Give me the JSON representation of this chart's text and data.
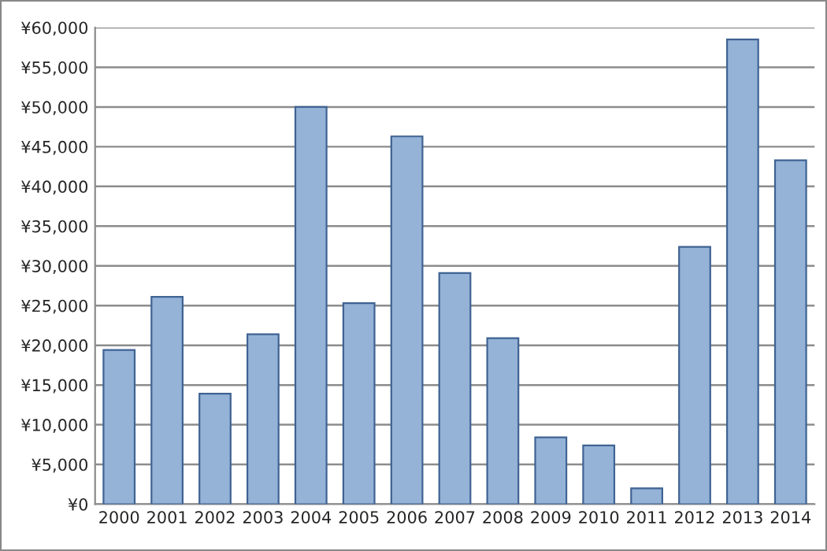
{
  "chart_data": {
    "type": "bar",
    "categories": [
      "2000",
      "2001",
      "2002",
      "2003",
      "2004",
      "2005",
      "2006",
      "2007",
      "2008",
      "2009",
      "2010",
      "2011",
      "2012",
      "2013",
      "2014"
    ],
    "values": [
      19400,
      26100,
      13900,
      21400,
      50000,
      25300,
      46300,
      29100,
      20900,
      8400,
      7400,
      2000,
      32400,
      58500,
      43300
    ],
    "color": "#95b3d7",
    "ylim": [
      0,
      60000
    ],
    "yticks": [
      {
        "value": 0,
        "label": "¥0"
      },
      {
        "value": 5000,
        "label": "¥5,000"
      },
      {
        "value": 10000,
        "label": "¥10,000"
      },
      {
        "value": 15000,
        "label": "¥15,000"
      },
      {
        "value": 20000,
        "label": "¥20,000"
      },
      {
        "value": 25000,
        "label": "¥25,000"
      },
      {
        "value": 30000,
        "label": "¥30,000"
      },
      {
        "value": 35000,
        "label": "¥35,000"
      },
      {
        "value": 40000,
        "label": "¥40,000"
      },
      {
        "value": 45000,
        "label": "¥45,000"
      },
      {
        "value": 50000,
        "label": "¥50,000"
      },
      {
        "value": 55000,
        "label": "¥55,000"
      },
      {
        "value": 60000,
        "label": "¥60,000"
      }
    ],
    "grid": "y",
    "legend": false
  }
}
